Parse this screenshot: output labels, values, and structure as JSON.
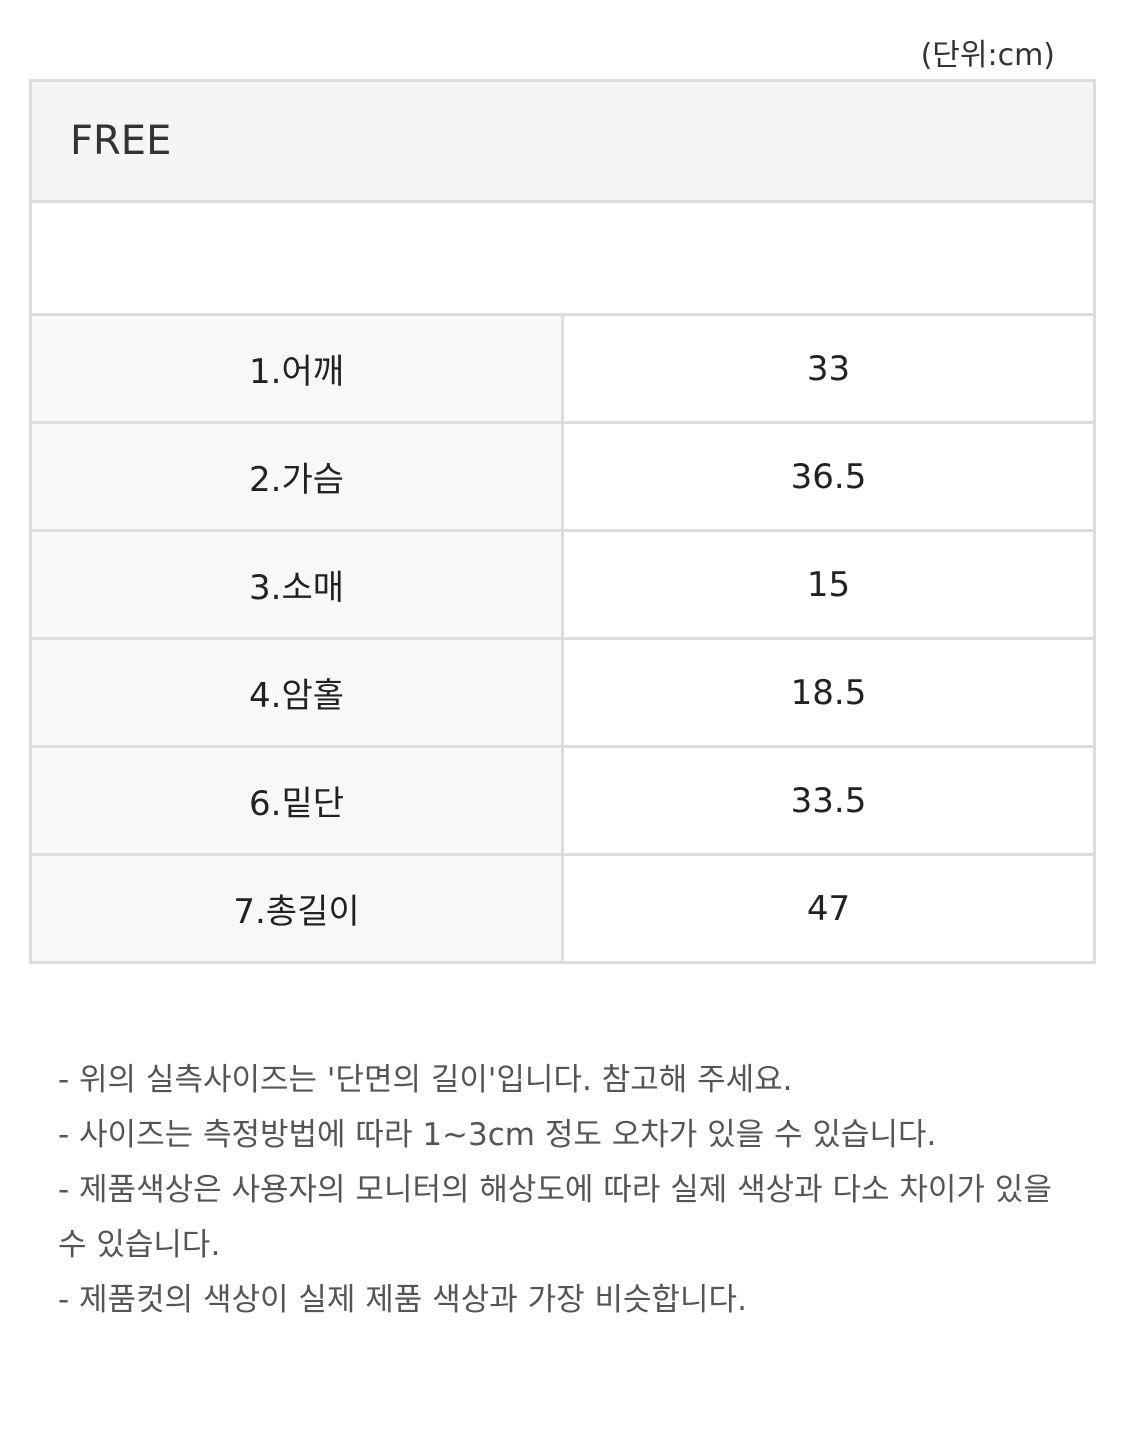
{
  "unit_label": "(단위:cm)",
  "size_header": "FREE",
  "rows": [
    {
      "label": "1.어깨",
      "value": "33"
    },
    {
      "label": "2.가슴",
      "value": "36.5"
    },
    {
      "label": "3.소매",
      "value": "15"
    },
    {
      "label": "4.암홀",
      "value": "18.5"
    },
    {
      "label": "6.밑단",
      "value": "33.5"
    },
    {
      "label": "7.총길이",
      "value": "47"
    }
  ],
  "notes": [
    "- 위의 실측사이즈는 '단면의 길이'입니다. 참고해 주세요.",
    "- 사이즈는 측정방법에 따라 1~3cm 정도 오차가 있을 수 있습니다.",
    "- 제품색상은 사용자의 모니터의 해상도에 따라 실제 색상과 다소 차이가 있을 수 있습니다.",
    "- 제품컷의 색상이 실제 제품 색상과 가장 비슷합니다."
  ]
}
